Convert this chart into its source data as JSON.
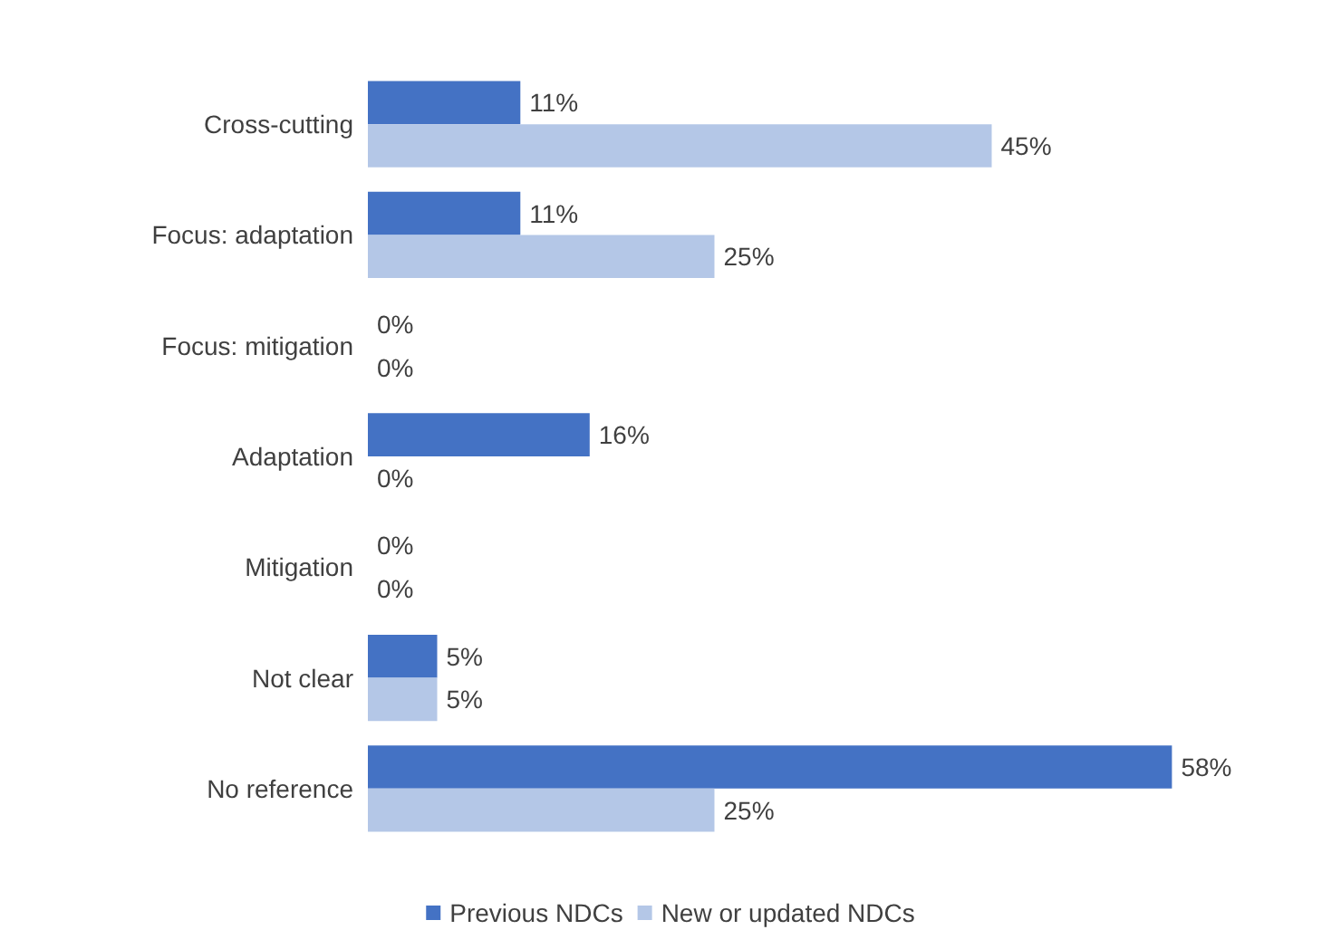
{
  "chart_data": {
    "type": "bar",
    "orientation": "horizontal",
    "categories": [
      "Cross-cutting",
      "Focus: adaptation",
      "Focus: mitigation",
      "Adaptation",
      "Mitigation",
      "Not clear",
      "No reference"
    ],
    "series": [
      {
        "name": "Previous NDCs",
        "color": "#4472c4",
        "values": [
          11,
          11,
          0,
          16,
          0,
          5,
          58
        ],
        "value_labels": [
          "11%",
          "11%",
          "0%",
          "16%",
          "0%",
          "5%",
          "58%"
        ]
      },
      {
        "name": "New or updated NDCs",
        "color": "#b4c7e7",
        "values": [
          45,
          25,
          0,
          0,
          0,
          5,
          25
        ],
        "value_labels": [
          "45%",
          "25%",
          "0%",
          "0%",
          "0%",
          "5%",
          "25%"
        ]
      }
    ],
    "legend": "bottom",
    "grid": false
  }
}
